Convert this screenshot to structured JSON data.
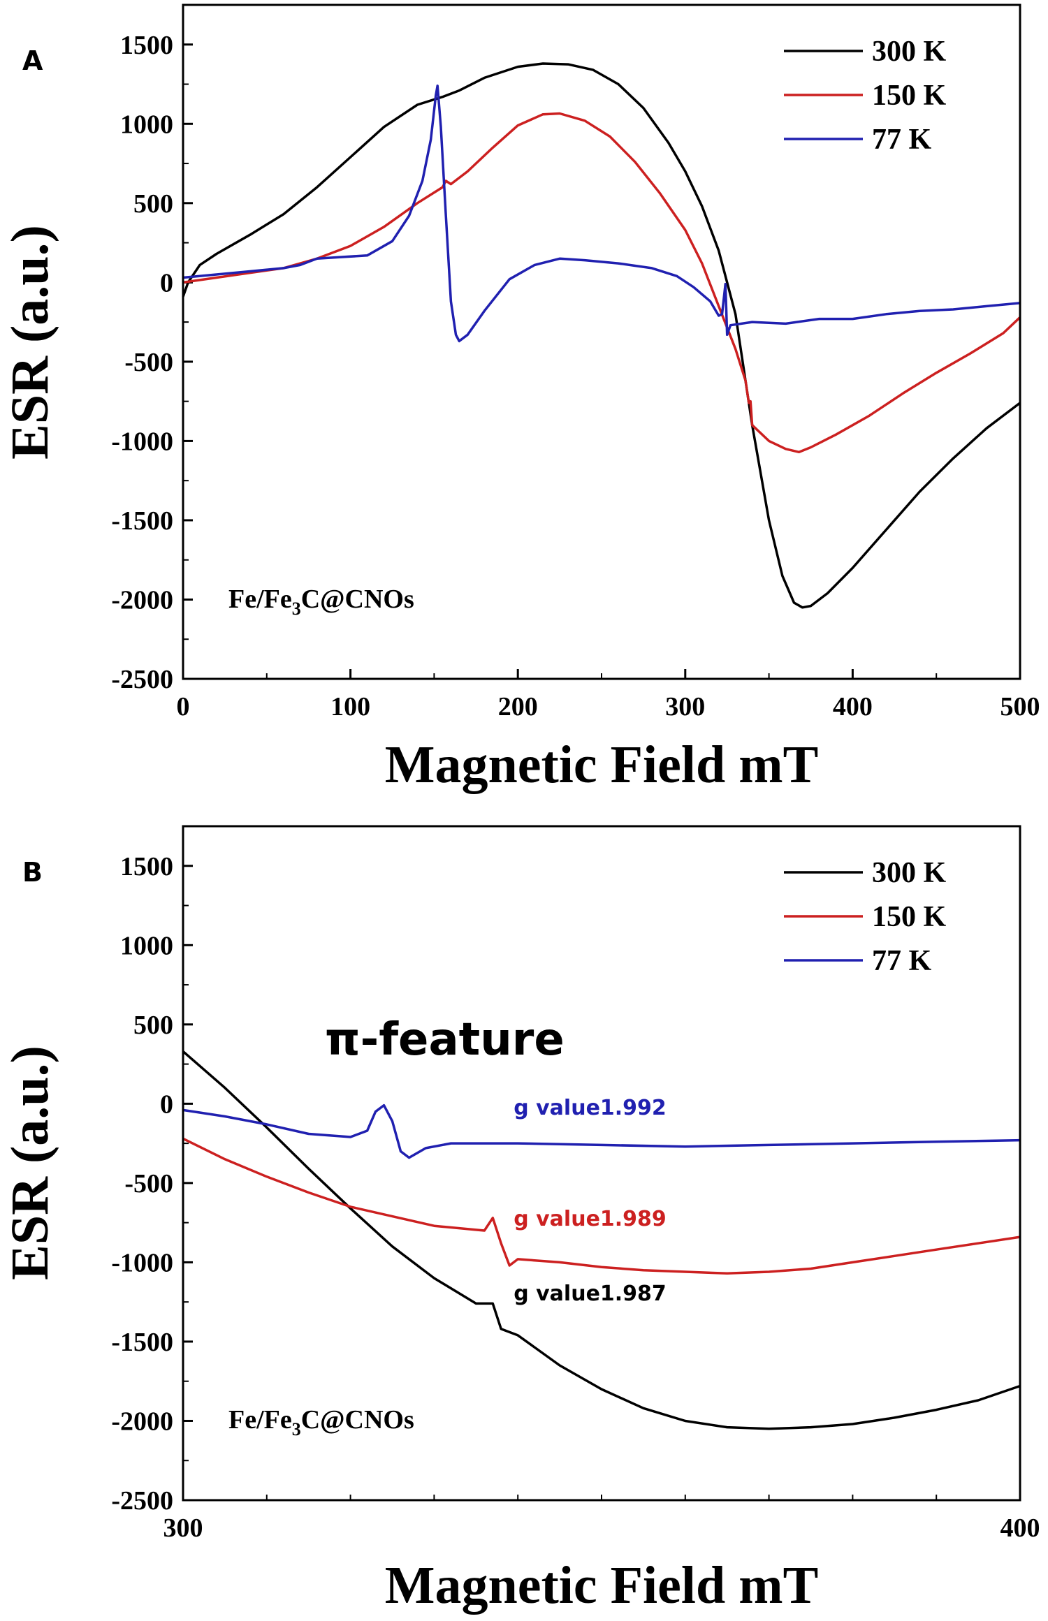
{
  "chart_data": [
    {
      "panel_label": "A",
      "type": "line",
      "xlabel": "Magnetic Field mT",
      "ylabel": "ESR (a.u.)",
      "xlim": [
        0,
        500
      ],
      "ylim": [
        -2500,
        1750
      ],
      "xticks": [
        0,
        100,
        200,
        300,
        400,
        500
      ],
      "yticks": [
        -2500,
        -2000,
        -1500,
        -1000,
        -500,
        0,
        500,
        1000,
        1500
      ],
      "grid": false,
      "legend_position": "top-right",
      "annotation": {
        "text_main": "Fe/Fe",
        "text_sub": "3",
        "text_tail": "C@CNOs"
      },
      "series": [
        {
          "name": "300 K",
          "color": "#000000",
          "points": [
            [
              0,
              -90
            ],
            [
              3,
              0
            ],
            [
              10,
              110
            ],
            [
              20,
              180
            ],
            [
              40,
              300
            ],
            [
              60,
              430
            ],
            [
              80,
              600
            ],
            [
              100,
              790
            ],
            [
              120,
              980
            ],
            [
              140,
              1120
            ],
            [
              155,
              1170
            ],
            [
              165,
              1210
            ],
            [
              180,
              1290
            ],
            [
              200,
              1360
            ],
            [
              215,
              1380
            ],
            [
              230,
              1375
            ],
            [
              245,
              1340
            ],
            [
              260,
              1250
            ],
            [
              275,
              1100
            ],
            [
              290,
              880
            ],
            [
              300,
              700
            ],
            [
              310,
              480
            ],
            [
              320,
              200
            ],
            [
              330,
              -200
            ],
            [
              340,
              -900
            ],
            [
              350,
              -1500
            ],
            [
              358,
              -1850
            ],
            [
              365,
              -2020
            ],
            [
              370,
              -2050
            ],
            [
              375,
              -2040
            ],
            [
              385,
              -1960
            ],
            [
              400,
              -1800
            ],
            [
              420,
              -1560
            ],
            [
              440,
              -1320
            ],
            [
              460,
              -1110
            ],
            [
              480,
              -920
            ],
            [
              500,
              -760
            ]
          ]
        },
        {
          "name": "150 K",
          "color": "#cc2020",
          "points": [
            [
              0,
              0
            ],
            [
              20,
              30
            ],
            [
              40,
              60
            ],
            [
              60,
              90
            ],
            [
              80,
              150
            ],
            [
              100,
              230
            ],
            [
              120,
              350
            ],
            [
              140,
              500
            ],
            [
              155,
              600
            ],
            [
              157,
              640
            ],
            [
              160,
              620
            ],
            [
              170,
              700
            ],
            [
              185,
              850
            ],
            [
              200,
              990
            ],
            [
              215,
              1060
            ],
            [
              225,
              1065
            ],
            [
              240,
              1020
            ],
            [
              255,
              920
            ],
            [
              270,
              760
            ],
            [
              285,
              560
            ],
            [
              300,
              330
            ],
            [
              310,
              120
            ],
            [
              320,
              -150
            ],
            [
              330,
              -420
            ],
            [
              336,
              -620
            ],
            [
              338,
              -760
            ],
            [
              339,
              -750
            ],
            [
              340,
              -900
            ],
            [
              350,
              -1000
            ],
            [
              360,
              -1050
            ],
            [
              368,
              -1070
            ],
            [
              375,
              -1040
            ],
            [
              390,
              -960
            ],
            [
              410,
              -840
            ],
            [
              430,
              -700
            ],
            [
              450,
              -570
            ],
            [
              470,
              -450
            ],
            [
              490,
              -320
            ],
            [
              500,
              -220
            ]
          ]
        },
        {
          "name": "77 K",
          "color": "#2020b0",
          "points": [
            [
              0,
              30
            ],
            [
              20,
              50
            ],
            [
              40,
              70
            ],
            [
              60,
              90
            ],
            [
              70,
              110
            ],
            [
              80,
              150
            ],
            [
              95,
              160
            ],
            [
              110,
              170
            ],
            [
              125,
              260
            ],
            [
              135,
              420
            ],
            [
              143,
              640
            ],
            [
              148,
              900
            ],
            [
              151,
              1180
            ],
            [
              152,
              1240
            ],
            [
              154,
              980
            ],
            [
              157,
              420
            ],
            [
              160,
              -120
            ],
            [
              163,
              -330
            ],
            [
              165,
              -370
            ],
            [
              170,
              -330
            ],
            [
              180,
              -180
            ],
            [
              195,
              20
            ],
            [
              210,
              110
            ],
            [
              225,
              150
            ],
            [
              240,
              140
            ],
            [
              260,
              120
            ],
            [
              280,
              90
            ],
            [
              295,
              40
            ],
            [
              305,
              -30
            ],
            [
              315,
              -120
            ],
            [
              320,
              -210
            ],
            [
              322,
              -200
            ],
            [
              324,
              -10
            ],
            [
              325,
              -330
            ],
            [
              327,
              -270
            ],
            [
              340,
              -250
            ],
            [
              360,
              -260
            ],
            [
              380,
              -230
            ],
            [
              400,
              -230
            ],
            [
              420,
              -200
            ],
            [
              440,
              -180
            ],
            [
              460,
              -170
            ],
            [
              480,
              -150
            ],
            [
              500,
              -130
            ]
          ]
        }
      ]
    },
    {
      "panel_label": "B",
      "type": "line",
      "xlabel": "Magnetic Field mT",
      "ylabel": "ESR (a.u.)",
      "xlim": [
        300,
        400
      ],
      "ylim": [
        -2500,
        1750
      ],
      "xticks": [
        300,
        400
      ],
      "yticks": [
        -2500,
        -2000,
        -1500,
        -1000,
        -500,
        0,
        500,
        1000,
        1500
      ],
      "grid": false,
      "legend_position": "top-right",
      "annotation": {
        "text_main": "Fe/Fe",
        "text_sub": "3",
        "text_tail": "C@CNOs"
      },
      "feature_label": "π-feature",
      "g_labels": [
        {
          "text": "g value1.992",
          "color": "#2020b0",
          "x": 339.5,
          "y": -70
        },
        {
          "text": "g value1.989",
          "color": "#cc2020",
          "x": 339.5,
          "y": -770
        },
        {
          "text": "g value1.987",
          "color": "#000000",
          "x": 339.5,
          "y": -1240
        }
      ],
      "series": [
        {
          "name": "300 K",
          "color": "#000000",
          "points": [
            [
              300,
              330
            ],
            [
              305,
              100
            ],
            [
              310,
              -150
            ],
            [
              315,
              -410
            ],
            [
              320,
              -660
            ],
            [
              325,
              -900
            ],
            [
              330,
              -1100
            ],
            [
              335,
              -1260
            ],
            [
              337,
              -1260
            ],
            [
              338,
              -1420
            ],
            [
              340,
              -1460
            ],
            [
              345,
              -1650
            ],
            [
              350,
              -1800
            ],
            [
              355,
              -1920
            ],
            [
              360,
              -2000
            ],
            [
              365,
              -2040
            ],
            [
              370,
              -2050
            ],
            [
              375,
              -2040
            ],
            [
              380,
              -2020
            ],
            [
              385,
              -1980
            ],
            [
              390,
              -1930
            ],
            [
              395,
              -1870
            ],
            [
              400,
              -1780
            ]
          ]
        },
        {
          "name": "150 K",
          "color": "#cc2020",
          "points": [
            [
              300,
              -220
            ],
            [
              305,
              -350
            ],
            [
              310,
              -460
            ],
            [
              315,
              -560
            ],
            [
              320,
              -650
            ],
            [
              325,
              -710
            ],
            [
              330,
              -770
            ],
            [
              336,
              -800
            ],
            [
              337,
              -720
            ],
            [
              338,
              -880
            ],
            [
              339,
              -1020
            ],
            [
              340,
              -980
            ],
            [
              345,
              -1000
            ],
            [
              350,
              -1030
            ],
            [
              355,
              -1050
            ],
            [
              360,
              -1060
            ],
            [
              365,
              -1070
            ],
            [
              370,
              -1060
            ],
            [
              375,
              -1040
            ],
            [
              380,
              -1000
            ],
            [
              385,
              -960
            ],
            [
              390,
              -920
            ],
            [
              395,
              -880
            ],
            [
              400,
              -840
            ]
          ]
        },
        {
          "name": "77 K",
          "color": "#2020b0",
          "points": [
            [
              300,
              -40
            ],
            [
              305,
              -80
            ],
            [
              310,
              -130
            ],
            [
              315,
              -190
            ],
            [
              320,
              -210
            ],
            [
              322,
              -170
            ],
            [
              323,
              -50
            ],
            [
              324,
              -10
            ],
            [
              325,
              -110
            ],
            [
              326,
              -300
            ],
            [
              327,
              -340
            ],
            [
              329,
              -280
            ],
            [
              332,
              -250
            ],
            [
              340,
              -250
            ],
            [
              350,
              -260
            ],
            [
              360,
              -270
            ],
            [
              370,
              -260
            ],
            [
              380,
              -250
            ],
            [
              390,
              -240
            ],
            [
              400,
              -230
            ]
          ]
        }
      ]
    }
  ]
}
